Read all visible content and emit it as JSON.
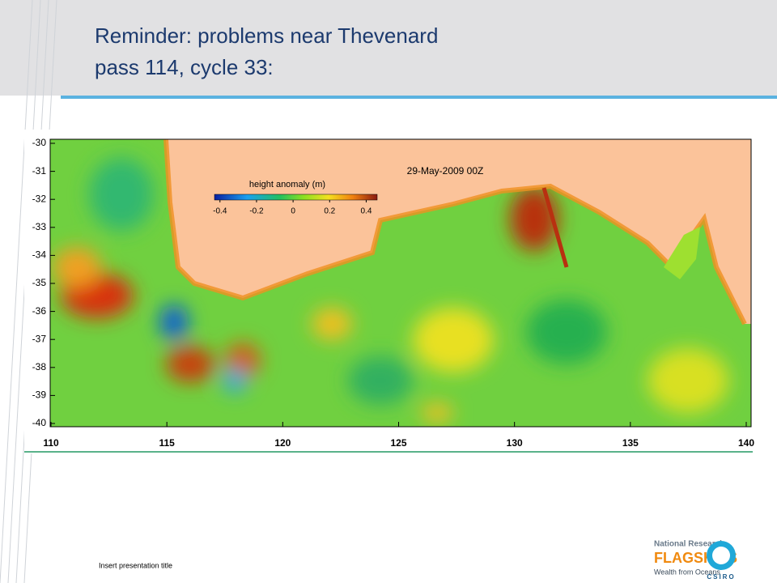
{
  "header": {
    "title_lines": [
      "Reminder: problems near Thevenard",
      "pass 114, cycle 33:"
    ]
  },
  "map": {
    "date_label": "29-May-2009 00Z",
    "colorbar": {
      "label": "height anomaly (m)",
      "lim": [
        -0.43,
        0.46
      ],
      "ticks": [
        -0.4,
        -0.2,
        0,
        0.2,
        0.4
      ]
    },
    "xlim": [
      110,
      140
    ],
    "xticks": [
      110,
      115,
      120,
      125,
      130,
      135,
      140
    ],
    "ylim": [
      -40,
      -30
    ],
    "yticks": [
      -30,
      -31,
      -32,
      -33,
      -34,
      -35,
      -36,
      -37,
      -38,
      -39,
      -40
    ]
  },
  "footer": {
    "text": "Insert presentation title"
  },
  "logo": {
    "line1": "National Research",
    "line2": "FLAGSHIPS",
    "line3": "Wealth from Oceans",
    "org": "CSIRO"
  }
}
